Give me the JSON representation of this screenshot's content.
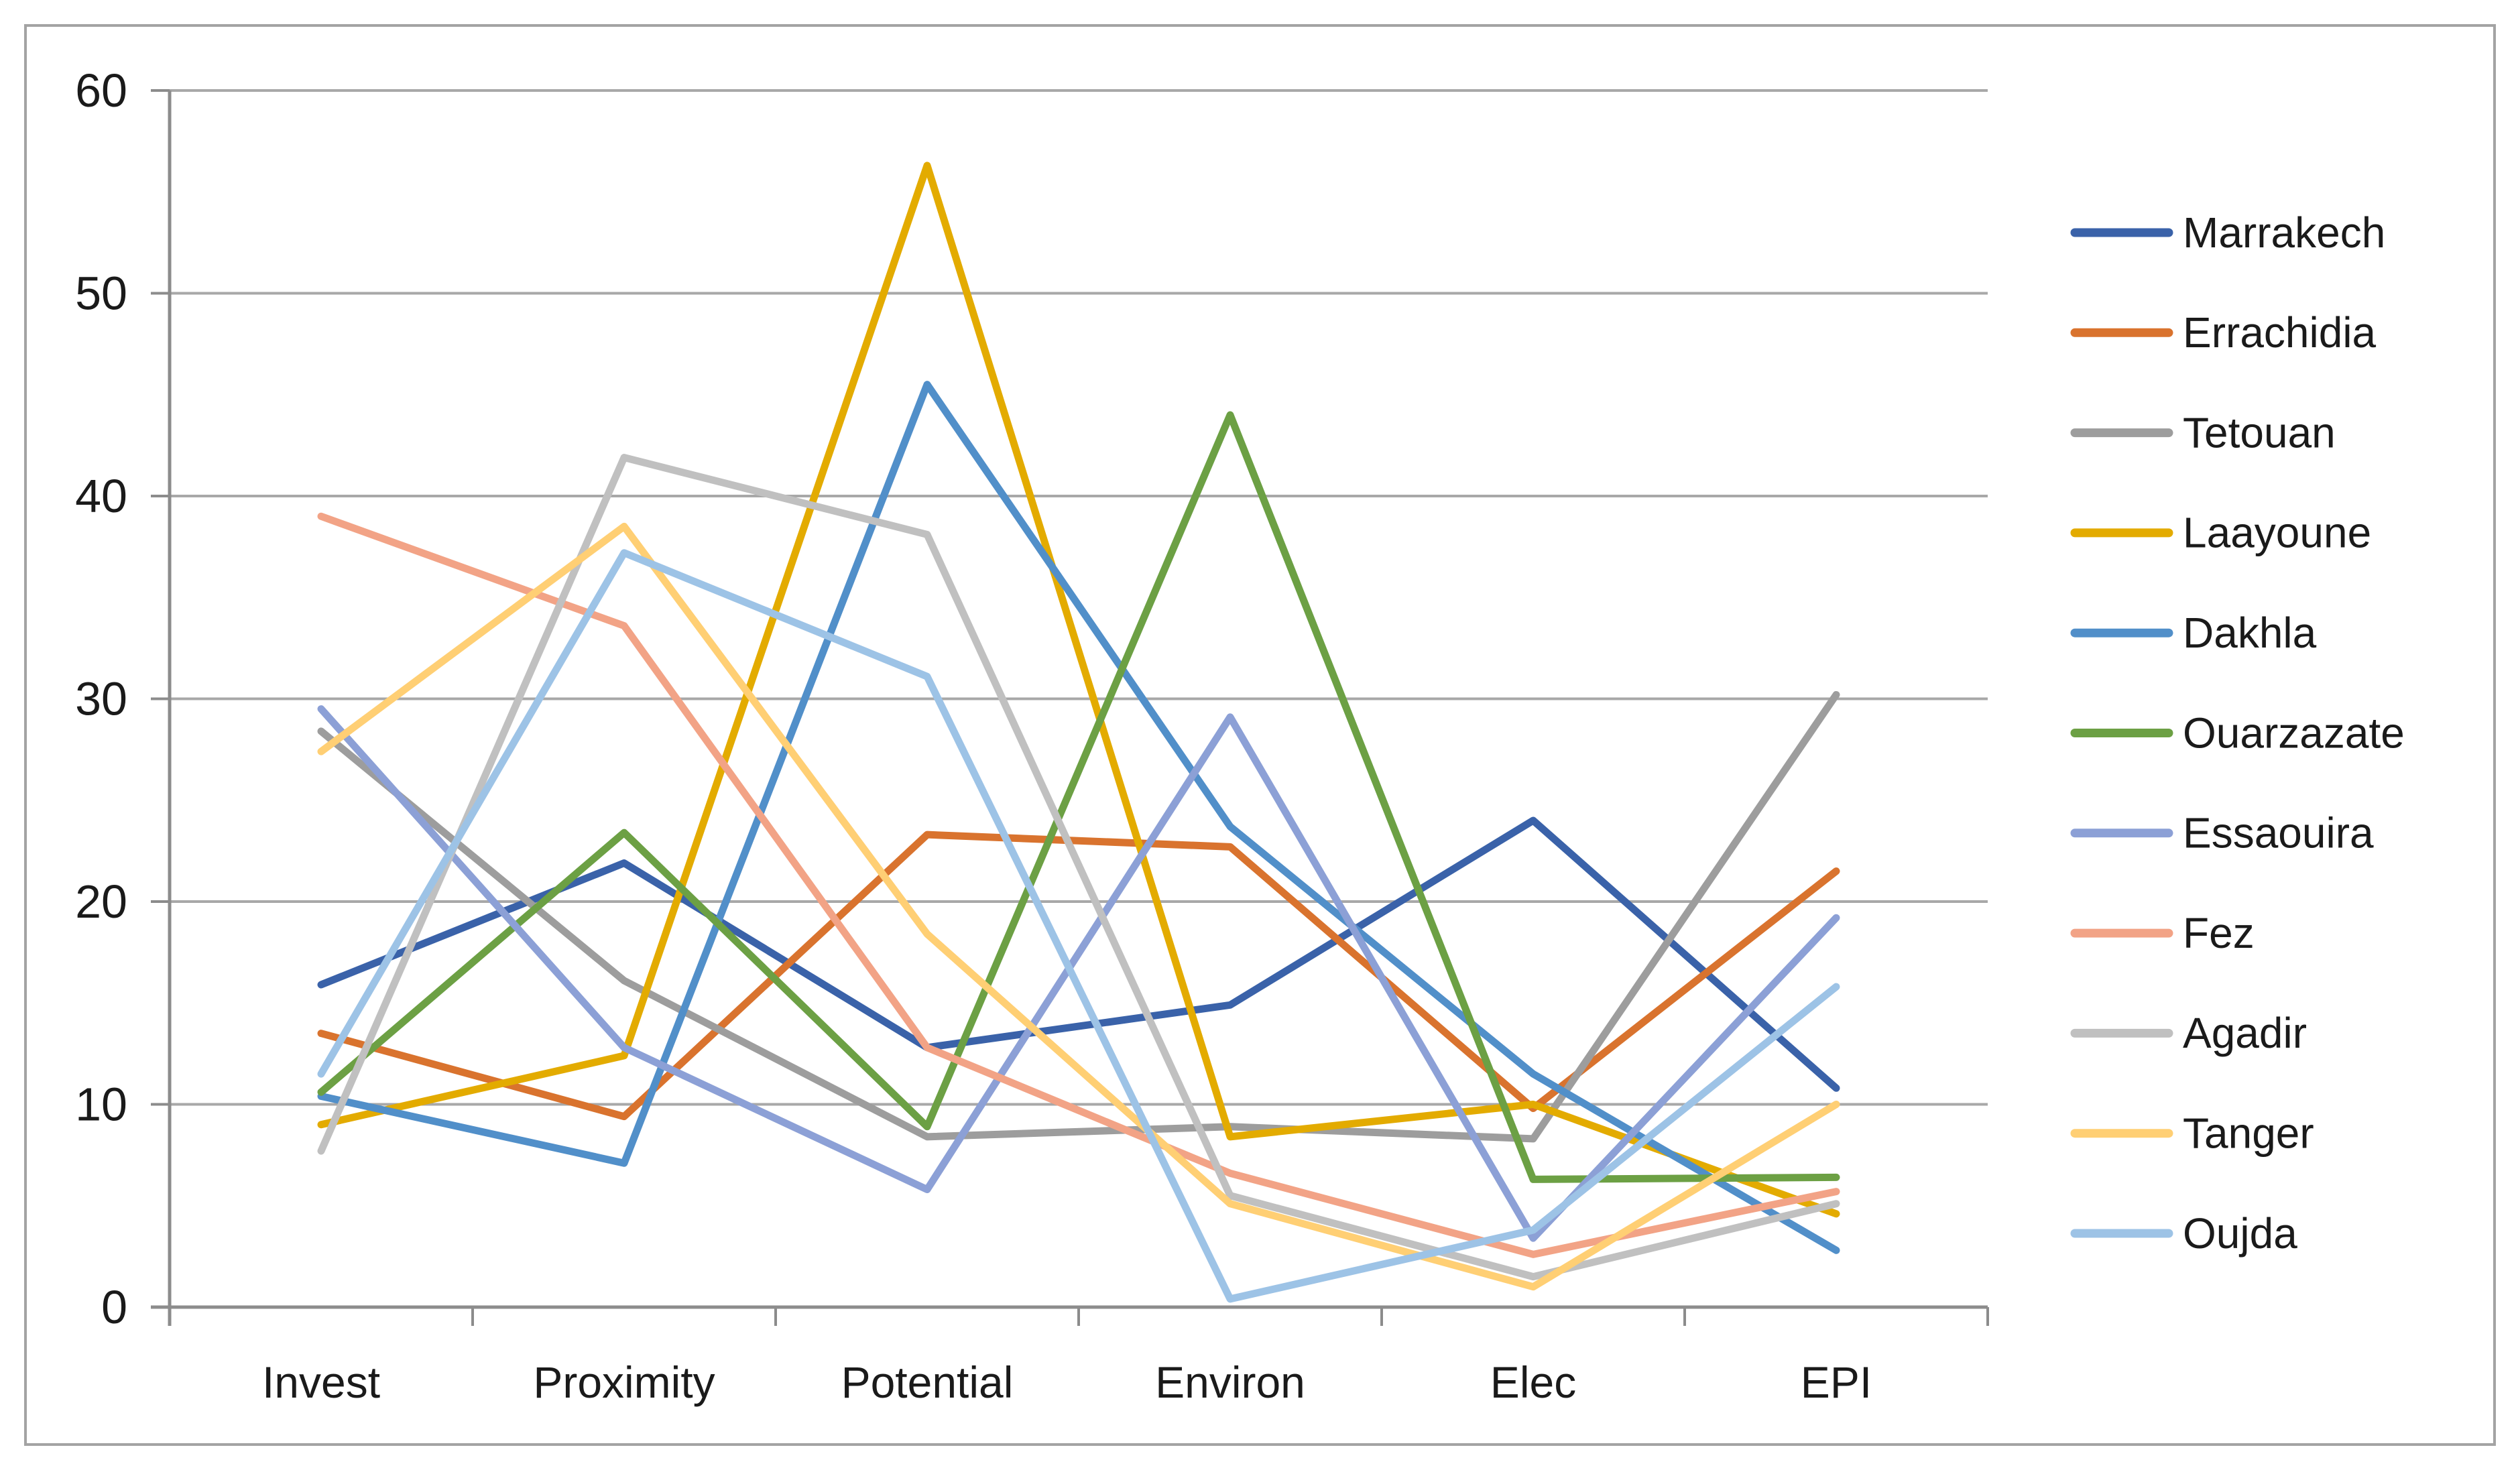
{
  "colors": {
    "background": "#FFFFFF",
    "figure_border": "#A3A3A3",
    "gridline": "#A8A8A8",
    "axis": "#8C8C8C",
    "tick": "#8C8C8C",
    "label_text": "#1A1A1A"
  },
  "chart_data": {
    "type": "line",
    "title": "",
    "xlabel": "",
    "ylabel": "",
    "categories": [
      "Invest",
      "Proximity",
      "Potential",
      "Environ",
      "Elec",
      "EPI"
    ],
    "ylim": [
      0,
      60
    ],
    "ytick_step": 10,
    "ytick_labels": [
      "0",
      "10",
      "20",
      "30",
      "40",
      "50",
      "60"
    ],
    "grid": true,
    "legend_position": "right",
    "series": [
      {
        "name": "Marrakech",
        "color": "#3A62A9",
        "values": [
          15.9,
          21.9,
          12.8,
          14.9,
          24.0,
          10.8
        ]
      },
      {
        "name": "Errachidia",
        "color": "#D9732E",
        "values": [
          13.5,
          9.4,
          23.3,
          22.7,
          9.8,
          21.5
        ]
      },
      {
        "name": "Tetouan",
        "color": "#9D9D9D",
        "values": [
          28.4,
          16.1,
          8.4,
          8.9,
          8.3,
          30.2
        ]
      },
      {
        "name": "Laayoune",
        "color": "#E3AB00",
        "values": [
          9.0,
          12.4,
          56.3,
          8.4,
          10.0,
          4.6
        ]
      },
      {
        "name": "Dakhla",
        "color": "#518FC9",
        "values": [
          10.4,
          7.1,
          45.5,
          23.7,
          11.5,
          2.8
        ]
      },
      {
        "name": "Ouarzazate",
        "color": "#6CA044",
        "values": [
          10.6,
          23.4,
          8.9,
          44.0,
          6.3,
          6.4
        ]
      },
      {
        "name": "Essaouira",
        "color": "#8CA0D6",
        "values": [
          29.5,
          12.8,
          5.8,
          29.1,
          3.4,
          19.2
        ]
      },
      {
        "name": "Fez",
        "color": "#F2A386",
        "values": [
          39.0,
          33.6,
          12.8,
          6.6,
          2.6,
          5.7
        ]
      },
      {
        "name": "Agadir",
        "color": "#C0C0C0",
        "values": [
          7.7,
          41.9,
          38.1,
          5.5,
          1.5,
          5.1
        ]
      },
      {
        "name": "Tanger",
        "color": "#FFCF74",
        "values": [
          27.4,
          38.5,
          18.4,
          5.1,
          1.0,
          10.0
        ]
      },
      {
        "name": "Oujda",
        "color": "#9DC3E6",
        "values": [
          11.5,
          37.2,
          31.1,
          0.4,
          3.8,
          15.8
        ]
      }
    ]
  }
}
